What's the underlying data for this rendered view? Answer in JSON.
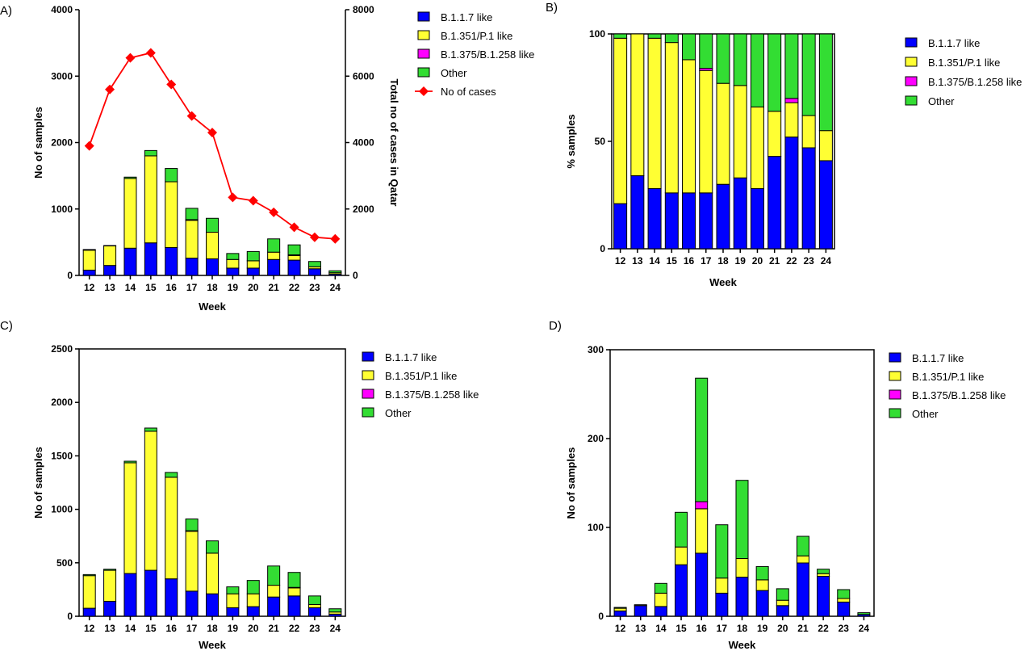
{
  "colors": {
    "b117": "#0000ff",
    "b1351": "#ffff33",
    "b1375": "#ff00ff",
    "other": "#33dd33",
    "cases_line": "#ff0000",
    "cases_marker": "#ff0000"
  },
  "legend_labels": {
    "b117": "B.1.1.7 like",
    "b1351": "B.1.351/P.1 like",
    "b1375": "B.1.375/B.1.258 like",
    "other": "Other",
    "cases": "No of cases"
  },
  "chart_data": [
    {
      "panel": "A)",
      "type": "bar",
      "stacked": true,
      "categories": [
        "12",
        "13",
        "14",
        "15",
        "16",
        "17",
        "18",
        "19",
        "20",
        "21",
        "22",
        "23",
        "24"
      ],
      "xlabel": "Week",
      "ylabel": "No of samples",
      "ylim": [
        0,
        4000
      ],
      "yticks": [
        0,
        1000,
        2000,
        3000,
        4000
      ],
      "y2label": "Total no of cases in Qatar",
      "y2lim": [
        0,
        8000
      ],
      "y2ticks": [
        0,
        2000,
        4000,
        6000,
        8000
      ],
      "legend_position": "right",
      "series": [
        {
          "key": "b117",
          "name": "B.1.1.7 like",
          "values": [
            80,
            150,
            410,
            490,
            420,
            260,
            250,
            110,
            110,
            240,
            230,
            100,
            20
          ]
        },
        {
          "key": "b1351",
          "name": "B.1.351/P.1 like",
          "values": [
            300,
            295,
            1050,
            1310,
            990,
            570,
            400,
            130,
            110,
            110,
            70,
            30,
            20
          ]
        },
        {
          "key": "b1375",
          "name": "B.1.375/B.1.258 like",
          "values": [
            0,
            0,
            0,
            0,
            0,
            10,
            0,
            0,
            0,
            0,
            10,
            0,
            0
          ]
        },
        {
          "key": "other",
          "name": "Other",
          "values": [
            10,
            5,
            20,
            80,
            200,
            170,
            210,
            90,
            140,
            200,
            150,
            80,
            30
          ]
        }
      ],
      "line_series": {
        "key": "cases",
        "name": "No of cases",
        "axis": "y2",
        "values": [
          3900,
          5600,
          6550,
          6700,
          5750,
          4800,
          4300,
          2350,
          2250,
          1900,
          1450,
          1150,
          1100
        ]
      }
    },
    {
      "panel": "B)",
      "type": "bar",
      "stacked": true,
      "categories": [
        "12",
        "13",
        "14",
        "15",
        "16",
        "17",
        "18",
        "19",
        "20",
        "21",
        "22",
        "23",
        "24"
      ],
      "xlabel": "Week",
      "ylabel": "% samples",
      "ylim": [
        0,
        100
      ],
      "yticks": [
        0,
        50,
        100
      ],
      "legend_position": "right",
      "series": [
        {
          "key": "b117",
          "name": "B.1.1.7 like",
          "values": [
            21,
            34,
            28,
            26,
            26,
            26,
            30,
            33,
            28,
            43,
            52,
            47,
            41
          ]
        },
        {
          "key": "b1351",
          "name": "B.1.351/P.1 like",
          "values": [
            77,
            66,
            70,
            70,
            62,
            57,
            47,
            43,
            38,
            21,
            16,
            15,
            14
          ]
        },
        {
          "key": "b1375",
          "name": "B.1.375/B.1.258 like",
          "values": [
            0,
            0,
            0,
            0,
            0,
            1,
            0,
            0,
            0,
            0,
            2,
            0,
            0
          ]
        },
        {
          "key": "other",
          "name": "Other",
          "values": [
            2,
            0,
            2,
            4,
            12,
            16,
            23,
            24,
            34,
            36,
            30,
            38,
            45
          ]
        }
      ]
    },
    {
      "panel": "C)",
      "type": "bar",
      "stacked": true,
      "categories": [
        "12",
        "13",
        "14",
        "15",
        "16",
        "17",
        "18",
        "19",
        "20",
        "21",
        "22",
        "23",
        "24"
      ],
      "xlabel": "Week",
      "ylabel": "No of samples",
      "ylim": [
        0,
        2500
      ],
      "yticks": [
        0,
        500,
        1000,
        1500,
        2000,
        2500
      ],
      "legend_position": "right",
      "series": [
        {
          "key": "b117",
          "name": "B.1.1.7 like",
          "values": [
            75,
            140,
            400,
            430,
            350,
            235,
            210,
            80,
            90,
            180,
            190,
            80,
            20
          ]
        },
        {
          "key": "b1351",
          "name": "B.1.351/P.1 like",
          "values": [
            305,
            290,
            1035,
            1300,
            950,
            560,
            380,
            130,
            120,
            110,
            75,
            30,
            20
          ]
        },
        {
          "key": "b1375",
          "name": "B.1.375/B.1.258 like",
          "values": [
            0,
            0,
            0,
            0,
            0,
            5,
            0,
            0,
            0,
            0,
            5,
            0,
            0
          ]
        },
        {
          "key": "other",
          "name": "Other",
          "values": [
            10,
            10,
            15,
            30,
            45,
            110,
            115,
            65,
            125,
            180,
            140,
            80,
            30
          ]
        }
      ]
    },
    {
      "panel": "D)",
      "type": "bar",
      "stacked": true,
      "categories": [
        "12",
        "13",
        "14",
        "15",
        "16",
        "17",
        "18",
        "19",
        "20",
        "21",
        "22",
        "23",
        "24"
      ],
      "xlabel": "Week",
      "ylabel": "No of samples",
      "ylim": [
        0,
        300
      ],
      "yticks": [
        0,
        100,
        200,
        300
      ],
      "legend_position": "right",
      "series": [
        {
          "key": "b117",
          "name": "B.1.1.7 like",
          "values": [
            6,
            12,
            11,
            58,
            71,
            26,
            44,
            29,
            12,
            60,
            45,
            16,
            2
          ]
        },
        {
          "key": "b1351",
          "name": "B.1.351/P.1 like",
          "values": [
            3,
            1,
            15,
            20,
            50,
            17,
            21,
            12,
            6,
            8,
            3,
            4,
            0
          ]
        },
        {
          "key": "b1375",
          "name": "B.1.375/B.1.258 like",
          "values": [
            0,
            0,
            0,
            0,
            8,
            0,
            0,
            0,
            0,
            0,
            0,
            0,
            0
          ]
        },
        {
          "key": "other",
          "name": "Other",
          "values": [
            1,
            0,
            11,
            39,
            139,
            60,
            88,
            15,
            13,
            22,
            5,
            10,
            2
          ]
        }
      ]
    }
  ]
}
